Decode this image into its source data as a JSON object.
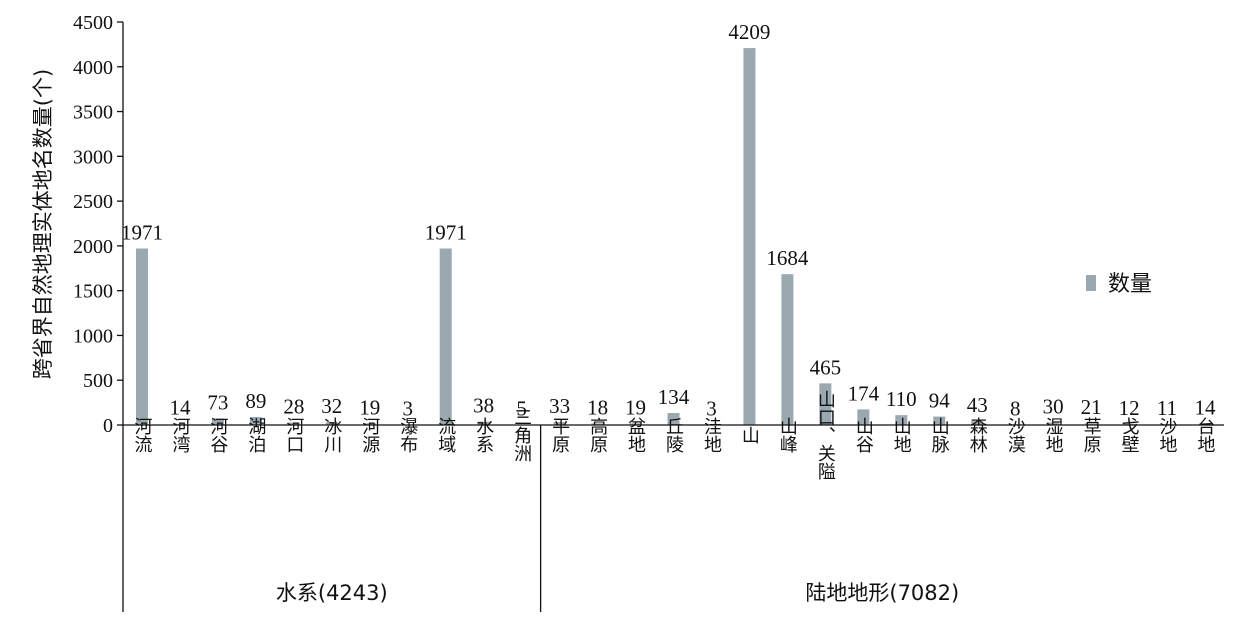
{
  "chart_data": {
    "type": "bar",
    "ylabel": "跨省界自然地理实体地名数量(个)",
    "ylim": [
      0,
      4500
    ],
    "yticks": [
      "0",
      "500",
      "1000",
      "1500",
      "2000",
      "2500",
      "3000",
      "3500",
      "4000",
      "4500"
    ],
    "legend": {
      "label": "数量",
      "position": "right"
    },
    "bar_color": "#9aa9b0",
    "series": [
      {
        "name": "数量",
        "values": [
          1971,
          14,
          73,
          89,
          28,
          32,
          19,
          3,
          1971,
          38,
          5,
          33,
          18,
          19,
          134,
          3,
          4209,
          1684,
          465,
          174,
          110,
          94,
          43,
          8,
          30,
          21,
          12,
          11,
          14
        ]
      }
    ],
    "categories": [
      "河流",
      "河湾",
      "河谷",
      "湖泊",
      "河口",
      "冰川",
      "河源",
      "瀑布",
      "流域",
      "水系",
      "三角洲",
      "平原",
      "高原",
      "盆地",
      "丘陵",
      "洼地",
      "山",
      "山峰",
      "山口、关隘",
      "山谷",
      "山地",
      "山脉",
      "森林",
      "沙漠",
      "湿地",
      "草原",
      "戈壁",
      "沙地",
      "台地"
    ],
    "groups": [
      {
        "label": "水系(4243)",
        "count": 11
      },
      {
        "label": "陆地地形(7082)",
        "count": 18
      }
    ]
  }
}
